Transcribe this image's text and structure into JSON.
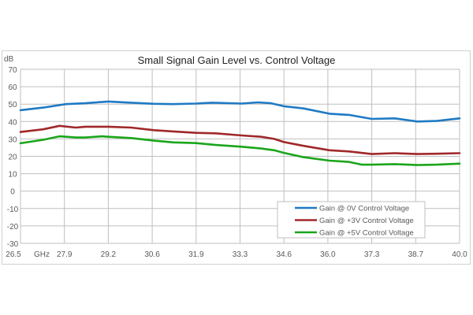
{
  "chart_data": {
    "type": "line",
    "title": "Small Signal Gain Level vs. Control Voltage",
    "xlabel": "GHz",
    "ylabel": "dB",
    "xlim": [
      26.5,
      40.0
    ],
    "ylim": [
      -30,
      70
    ],
    "x_ticks": [
      "26.5",
      "27.9",
      "29.2",
      "30.6",
      "31.9",
      "33.3",
      "34.6",
      "36.0",
      "37.3",
      "38.7",
      "40.0"
    ],
    "y_ticks": [
      70,
      60,
      50,
      40,
      30,
      20,
      10,
      0,
      -10,
      -20,
      -30
    ],
    "grid": true,
    "legend_position": "bottom-right",
    "series": [
      {
        "name": "Gain @ 0V Control Voltage",
        "color": "#1f7ac3",
        "x": [
          26.5,
          27.2,
          27.9,
          28.5,
          29.2,
          29.9,
          30.6,
          31.2,
          31.9,
          32.4,
          33.3,
          33.8,
          34.2,
          34.6,
          35.2,
          36.0,
          36.6,
          37.3,
          38.0,
          38.7,
          39.3,
          40.0
        ],
        "y": [
          46.5,
          48,
          50,
          50.5,
          51.5,
          50.8,
          50.2,
          50,
          50.3,
          50.8,
          50.3,
          51,
          50.5,
          48.8,
          47.5,
          44.5,
          43.8,
          41.5,
          41.8,
          40,
          40.3,
          41.8
        ]
      },
      {
        "name": "Gain @ +3V Control Voltage",
        "color": "#a0282a",
        "x": [
          26.5,
          27.2,
          27.7,
          28.2,
          28.5,
          29.2,
          29.9,
          30.6,
          31.2,
          31.9,
          32.5,
          33.3,
          33.9,
          34.3,
          34.6,
          35.2,
          36.0,
          36.6,
          37.3,
          38.0,
          38.7,
          39.3,
          40.0
        ],
        "y": [
          34,
          35.5,
          37.5,
          36.5,
          37,
          37,
          36.5,
          35,
          34.3,
          33.5,
          33.2,
          32,
          31.2,
          30,
          28.2,
          26,
          23.5,
          22.8,
          21.3,
          21.8,
          21.3,
          21.5,
          21.8
        ]
      },
      {
        "name": "Gain @ +5V Control Voltage",
        "color": "#1aa51a",
        "x": [
          26.5,
          27.2,
          27.7,
          28.2,
          28.5,
          29.0,
          29.2,
          29.9,
          30.6,
          31.2,
          31.9,
          32.5,
          33.3,
          33.9,
          34.3,
          34.6,
          35.2,
          36.0,
          36.6,
          37.0,
          37.3,
          38.0,
          38.7,
          39.3,
          40.0
        ],
        "y": [
          27.5,
          29.5,
          31.5,
          30.8,
          30.8,
          31.5,
          31.2,
          30.5,
          29,
          28,
          27.6,
          26.5,
          25.5,
          24.5,
          23.5,
          22,
          19.5,
          17.5,
          16.8,
          15.2,
          15.2,
          15.5,
          15,
          15.2,
          15.8
        ]
      }
    ]
  }
}
